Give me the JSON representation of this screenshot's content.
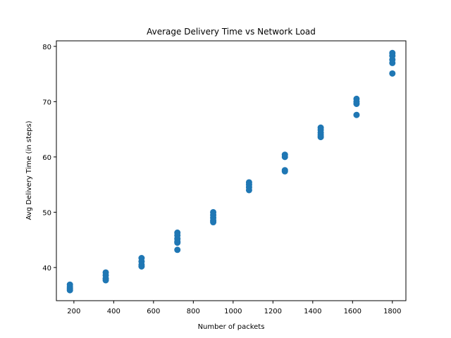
{
  "chart_data": {
    "type": "scatter",
    "title": "Average Delivery Time vs Network Load",
    "xlabel": "Number of packets",
    "ylabel": "Avg Delivery Time (in steps)",
    "xlim": [
      112,
      1868
    ],
    "ylim": [
      34,
      81
    ],
    "xticks": [
      200,
      400,
      600,
      800,
      1000,
      1200,
      1400,
      1600,
      1800
    ],
    "yticks": [
      40,
      50,
      60,
      70,
      80
    ],
    "grid": false,
    "legend": "none",
    "color": "#1f77b4",
    "series": [
      {
        "points": [
          {
            "x": 180,
            "y": 36.9
          },
          {
            "x": 180,
            "y": 36.5
          },
          {
            "x": 180,
            "y": 36.2
          },
          {
            "x": 180,
            "y": 35.9
          },
          {
            "x": 360,
            "y": 39.1
          },
          {
            "x": 360,
            "y": 38.6
          },
          {
            "x": 360,
            "y": 38.0
          },
          {
            "x": 360,
            "y": 37.7
          },
          {
            "x": 540,
            "y": 41.7
          },
          {
            "x": 540,
            "y": 41.1
          },
          {
            "x": 540,
            "y": 40.5
          },
          {
            "x": 540,
            "y": 40.2
          },
          {
            "x": 720,
            "y": 46.3
          },
          {
            "x": 720,
            "y": 45.8
          },
          {
            "x": 720,
            "y": 45.2
          },
          {
            "x": 720,
            "y": 44.7
          },
          {
            "x": 720,
            "y": 44.5
          },
          {
            "x": 720,
            "y": 43.2
          },
          {
            "x": 900,
            "y": 50.0
          },
          {
            "x": 900,
            "y": 49.5
          },
          {
            "x": 900,
            "y": 49.0
          },
          {
            "x": 900,
            "y": 48.5
          },
          {
            "x": 900,
            "y": 48.2
          },
          {
            "x": 1080,
            "y": 55.4
          },
          {
            "x": 1080,
            "y": 55.0
          },
          {
            "x": 1080,
            "y": 54.5
          },
          {
            "x": 1080,
            "y": 54.0
          },
          {
            "x": 1260,
            "y": 60.4
          },
          {
            "x": 1260,
            "y": 60.0
          },
          {
            "x": 1260,
            "y": 57.6
          },
          {
            "x": 1260,
            "y": 57.4
          },
          {
            "x": 1440,
            "y": 65.3
          },
          {
            "x": 1440,
            "y": 64.9
          },
          {
            "x": 1440,
            "y": 64.4
          },
          {
            "x": 1440,
            "y": 64.0
          },
          {
            "x": 1440,
            "y": 63.6
          },
          {
            "x": 1620,
            "y": 70.5
          },
          {
            "x": 1620,
            "y": 70.0
          },
          {
            "x": 1620,
            "y": 69.6
          },
          {
            "x": 1620,
            "y": 67.6
          },
          {
            "x": 1800,
            "y": 78.8
          },
          {
            "x": 1800,
            "y": 78.3
          },
          {
            "x": 1800,
            "y": 77.6
          },
          {
            "x": 1800,
            "y": 77.0
          },
          {
            "x": 1800,
            "y": 75.1
          }
        ]
      }
    ]
  }
}
